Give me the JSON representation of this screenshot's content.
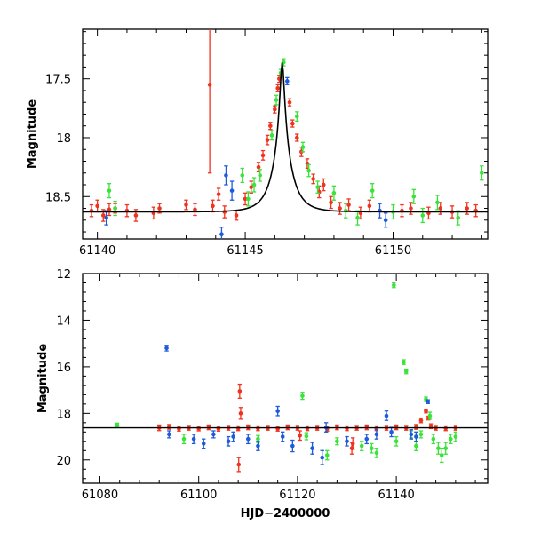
{
  "chart_data": [
    {
      "type": "scatter",
      "panel": "top",
      "title": "",
      "xlabel": "",
      "ylabel": "Magnitude",
      "xlim": [
        61139.5,
        61153.2
      ],
      "ylim": [
        18.86,
        17.08
      ],
      "y_inverted": true,
      "xticks": [
        61140,
        61145,
        61150
      ],
      "xtick_labels": [
        "61140",
        "61145",
        "61150"
      ],
      "yticks": [
        17.5,
        18,
        18.5
      ],
      "ytick_labels": [
        "17.5",
        "18",
        "18.5"
      ],
      "model_curve": {
        "name": "lensing model",
        "color": "#000000",
        "baseline_mag": 18.63,
        "peak_mag": 17.36,
        "t0": 61146.25,
        "u0_like": 0.1,
        "width_days": 0.58
      },
      "series": [
        {
          "name": "red",
          "color": "#f0321e",
          "x": [
            61139.8,
            61140.0,
            61140.2,
            61140.4,
            61140.6,
            61141.0,
            61141.3,
            61141.9,
            61142.1,
            61143.0,
            61143.3,
            61143.9,
            61144.1,
            61144.3,
            61144.7,
            61145.0,
            61145.2,
            61145.45,
            61145.6,
            61145.75,
            61145.85,
            61146.0,
            61146.1,
            61146.15,
            61146.5,
            61146.6,
            61146.75,
            61146.9,
            61147.1,
            61147.3,
            61147.5,
            61147.65,
            61147.9,
            61148.2,
            61148.5,
            61148.9,
            61149.2,
            61150.3,
            61150.6,
            61151.2,
            61151.6,
            61152.0,
            61152.5,
            61152.8,
            61143.8
          ],
          "y": [
            18.62,
            18.58,
            18.66,
            18.61,
            18.6,
            18.62,
            18.66,
            18.64,
            18.6,
            18.57,
            18.61,
            18.58,
            18.48,
            18.63,
            18.66,
            18.52,
            18.42,
            18.25,
            18.15,
            18.02,
            17.9,
            17.76,
            17.58,
            17.5,
            17.7,
            17.88,
            18.0,
            18.12,
            18.22,
            18.35,
            18.46,
            18.4,
            18.55,
            18.6,
            18.57,
            18.64,
            18.58,
            18.62,
            18.6,
            18.64,
            18.6,
            18.63,
            18.6,
            18.62,
            17.55
          ],
          "yerr": [
            0.05,
            0.05,
            0.05,
            0.05,
            0.04,
            0.05,
            0.05,
            0.05,
            0.04,
            0.04,
            0.05,
            0.05,
            0.05,
            0.05,
            0.04,
            0.05,
            0.05,
            0.04,
            0.04,
            0.04,
            0.03,
            0.03,
            0.03,
            0.03,
            0.03,
            0.03,
            0.03,
            0.04,
            0.04,
            0.04,
            0.05,
            0.05,
            0.05,
            0.05,
            0.05,
            0.05,
            0.05,
            0.05,
            0.05,
            0.05,
            0.05,
            0.05,
            0.05,
            0.05,
            0.75
          ]
        },
        {
          "name": "green",
          "color": "#3ae33a",
          "x": [
            61140.4,
            61140.6,
            61144.9,
            61145.1,
            61145.3,
            61145.5,
            61145.9,
            61146.05,
            61146.2,
            61146.3,
            61146.75,
            61146.95,
            61147.15,
            61147.45,
            61148.0,
            61148.4,
            61148.8,
            61149.3,
            61150.0,
            61150.7,
            61151.0,
            61151.5,
            61152.2,
            61153.0
          ],
          "y": [
            18.45,
            18.6,
            18.32,
            18.52,
            18.4,
            18.32,
            17.98,
            17.68,
            17.45,
            17.36,
            17.82,
            18.08,
            18.28,
            18.42,
            18.47,
            18.62,
            18.68,
            18.45,
            18.63,
            18.5,
            18.66,
            18.55,
            18.68,
            18.3
          ],
          "yerr": [
            0.06,
            0.06,
            0.06,
            0.06,
            0.06,
            0.05,
            0.04,
            0.04,
            0.03,
            0.03,
            0.04,
            0.04,
            0.05,
            0.05,
            0.06,
            0.06,
            0.06,
            0.06,
            0.06,
            0.06,
            0.06,
            0.06,
            0.06,
            0.06
          ]
        },
        {
          "name": "blue",
          "color": "#1e5adc",
          "x": [
            61140.3,
            61144.35,
            61144.55,
            61146.42,
            61149.55,
            61149.75,
            61144.2
          ],
          "y": [
            18.68,
            18.32,
            18.45,
            17.52,
            18.62,
            18.7,
            18.82
          ],
          "yerr": [
            0.06,
            0.08,
            0.08,
            0.03,
            0.06,
            0.06,
            0.06
          ]
        }
      ]
    },
    {
      "type": "scatter",
      "panel": "bottom",
      "title": "",
      "xlabel": "HJD−2400000",
      "ylabel": "Magnitude",
      "xlim": [
        61076.5,
        61158.5
      ],
      "ylim": [
        21.0,
        12.0
      ],
      "y_inverted": true,
      "xticks": [
        61080,
        61100,
        61120,
        61140
      ],
      "xtick_labels": [
        "61080",
        "61100",
        "61120",
        "61140"
      ],
      "yticks": [
        12,
        14,
        16,
        18,
        20
      ],
      "ytick_labels": [
        "12",
        "14",
        "16",
        "18",
        "20"
      ],
      "baseline": {
        "y": 18.62,
        "color": "#000000"
      },
      "series": [
        {
          "name": "red",
          "color": "#f0321e",
          "x": [
            61092,
            61094,
            61096,
            61098,
            61100,
            61102,
            61104,
            61106,
            61108,
            61108.3,
            61110,
            61112,
            61114,
            61116,
            61118,
            61120,
            61122,
            61124,
            61126,
            61128,
            61130,
            61131,
            61132,
            61134,
            61136,
            61138,
            61140,
            61142,
            61144,
            61145,
            61146,
            61146.5,
            61147,
            61148,
            61150,
            61152,
            61108.1,
            61120.5,
            61131.2,
            61108.5
          ],
          "y": [
            18.62,
            18.58,
            18.66,
            18.62,
            18.65,
            18.6,
            18.66,
            18.62,
            18.64,
            17.05,
            18.6,
            18.64,
            18.62,
            18.66,
            18.6,
            18.62,
            18.64,
            18.62,
            18.66,
            18.6,
            18.64,
            19.5,
            18.62,
            18.6,
            18.64,
            18.62,
            18.6,
            18.62,
            18.58,
            18.3,
            17.9,
            18.2,
            18.55,
            18.62,
            18.64,
            18.62,
            20.2,
            18.95,
            19.3,
            18.0
          ],
          "yerr": [
            0.12,
            0.1,
            0.1,
            0.1,
            0.1,
            0.1,
            0.1,
            0.1,
            0.1,
            0.3,
            0.1,
            0.1,
            0.1,
            0.1,
            0.1,
            0.1,
            0.1,
            0.1,
            0.1,
            0.1,
            0.1,
            0.25,
            0.1,
            0.1,
            0.1,
            0.1,
            0.1,
            0.1,
            0.1,
            0.1,
            0.08,
            0.08,
            0.1,
            0.1,
            0.1,
            0.1,
            0.3,
            0.2,
            0.25,
            0.25
          ]
        },
        {
          "name": "green",
          "color": "#3ae33a",
          "x": [
            61083.5,
            61097,
            61112,
            61121,
            61121.8,
            61128,
            61133,
            61136,
            61139.5,
            61140,
            61141.5,
            61142,
            61143,
            61144,
            61145,
            61146,
            61146.8,
            61147.5,
            61148.5,
            61149.2,
            61150,
            61151,
            61152,
            61126,
            61135
          ],
          "y": [
            18.5,
            19.1,
            19.1,
            17.25,
            18.98,
            19.2,
            19.4,
            19.7,
            12.5,
            19.2,
            15.8,
            16.2,
            18.9,
            19.4,
            18.9,
            17.4,
            18.1,
            19.1,
            19.5,
            19.8,
            19.5,
            19.1,
            19.0,
            19.8,
            19.5
          ],
          "yerr": [
            0.08,
            0.2,
            0.15,
            0.15,
            0.15,
            0.15,
            0.2,
            0.2,
            0.1,
            0.2,
            0.1,
            0.1,
            0.15,
            0.2,
            0.15,
            0.1,
            0.15,
            0.2,
            0.25,
            0.3,
            0.25,
            0.2,
            0.2,
            0.2,
            0.2
          ]
        },
        {
          "name": "blue",
          "color": "#1e5adc",
          "x": [
            61093.5,
            61094,
            61099,
            61101,
            61103,
            61106,
            61107,
            61110,
            61112,
            61116,
            61117,
            61119,
            61123,
            61125,
            61130,
            61134,
            61136,
            61138,
            61139,
            61143,
            61144,
            61146.4,
            61125.8
          ],
          "y": [
            15.2,
            18.9,
            19.1,
            19.3,
            18.9,
            19.2,
            19.0,
            19.1,
            19.4,
            17.9,
            19.0,
            19.4,
            19.5,
            19.9,
            19.2,
            19.1,
            18.9,
            18.1,
            18.8,
            18.9,
            19.0,
            17.5,
            18.6
          ],
          "yerr": [
            0.12,
            0.15,
            0.2,
            0.2,
            0.15,
            0.2,
            0.2,
            0.2,
            0.2,
            0.2,
            0.2,
            0.25,
            0.25,
            0.3,
            0.2,
            0.2,
            0.2,
            0.2,
            0.2,
            0.2,
            0.2,
            0.08,
            0.2
          ]
        }
      ]
    }
  ]
}
